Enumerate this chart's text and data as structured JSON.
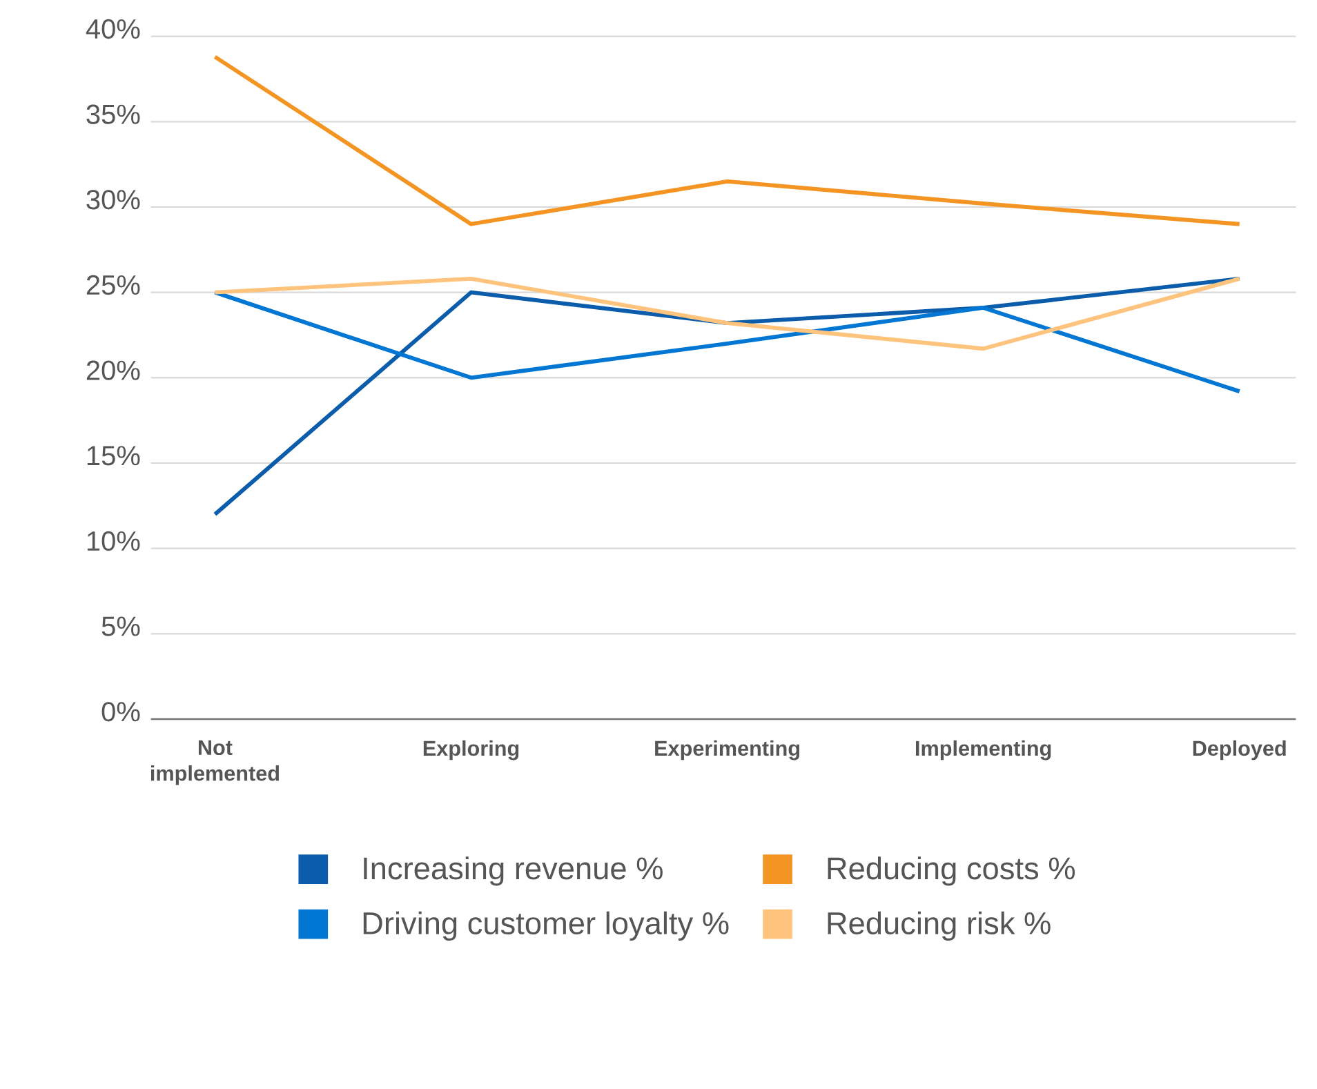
{
  "chart_data": {
    "type": "line",
    "categories": [
      "Not implemented",
      "Exploring",
      "Experimenting",
      "Implementing",
      "Deployed"
    ],
    "series": [
      {
        "name": "Increasing revenue %",
        "color": "#0b5cab",
        "values": [
          12,
          25,
          23.2,
          24.1,
          25.8
        ]
      },
      {
        "name": "Reducing costs %",
        "color": "#f49523",
        "values": [
          38.8,
          29,
          31.5,
          30.2,
          29
        ]
      },
      {
        "name": "Driving customer loyalty %",
        "color": "#0176d3",
        "values": [
          25,
          20,
          22,
          24.1,
          19.2
        ]
      },
      {
        "name": "Reducing risk %",
        "color": "#fec37d",
        "values": [
          25,
          25.8,
          23.2,
          21.7,
          25.8
        ]
      }
    ],
    "ylim": [
      0,
      40
    ],
    "yticks": [
      {
        "value": 0,
        "label": "0%"
      },
      {
        "value": 5,
        "label": "5%"
      },
      {
        "value": 10,
        "label": "10%"
      },
      {
        "value": 15,
        "label": "15%"
      },
      {
        "value": 20,
        "label": "20%"
      },
      {
        "value": 25,
        "label": "25%"
      },
      {
        "value": 30,
        "label": "30%"
      },
      {
        "value": 35,
        "label": "35%"
      },
      {
        "value": 40,
        "label": "40%"
      }
    ],
    "grid": "y",
    "legend": "bottom"
  }
}
